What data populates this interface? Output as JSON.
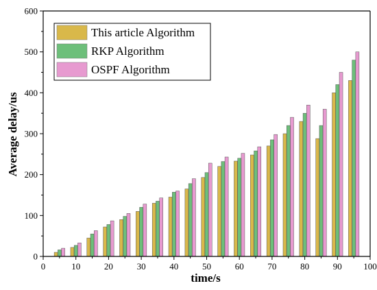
{
  "chart_data": {
    "type": "bar",
    "xlabel": "time/s",
    "ylabel": "Average delay/us",
    "xlim": [
      0,
      100
    ],
    "ylim": [
      0,
      600
    ],
    "x_ticks": [
      0,
      10,
      20,
      30,
      40,
      50,
      60,
      70,
      80,
      90,
      100
    ],
    "y_ticks": [
      0,
      100,
      200,
      300,
      400,
      500,
      600
    ],
    "grid": false,
    "legend_position": "top-left",
    "x": [
      5,
      10,
      15,
      20,
      25,
      30,
      35,
      40,
      45,
      50,
      55,
      60,
      65,
      70,
      75,
      80,
      85,
      90,
      95
    ],
    "series": [
      {
        "name": "This article Algorithm",
        "color": "#d9b84a",
        "values": [
          10,
          22,
          45,
          72,
          90,
          110,
          130,
          145,
          165,
          193,
          220,
          233,
          248,
          270,
          300,
          330,
          288,
          400,
          430
        ]
      },
      {
        "name": "RKP Algorithm",
        "color": "#6dbf7a",
        "values": [
          16,
          27,
          55,
          78,
          98,
          120,
          135,
          157,
          178,
          205,
          232,
          240,
          258,
          285,
          320,
          350,
          320,
          420,
          480
        ]
      },
      {
        "name": "OSPF Algorithm",
        "color": "#e79ad0",
        "values": [
          20,
          33,
          63,
          87,
          105,
          128,
          143,
          160,
          190,
          228,
          243,
          252,
          268,
          298,
          340,
          370,
          360,
          450,
          500
        ]
      }
    ]
  }
}
